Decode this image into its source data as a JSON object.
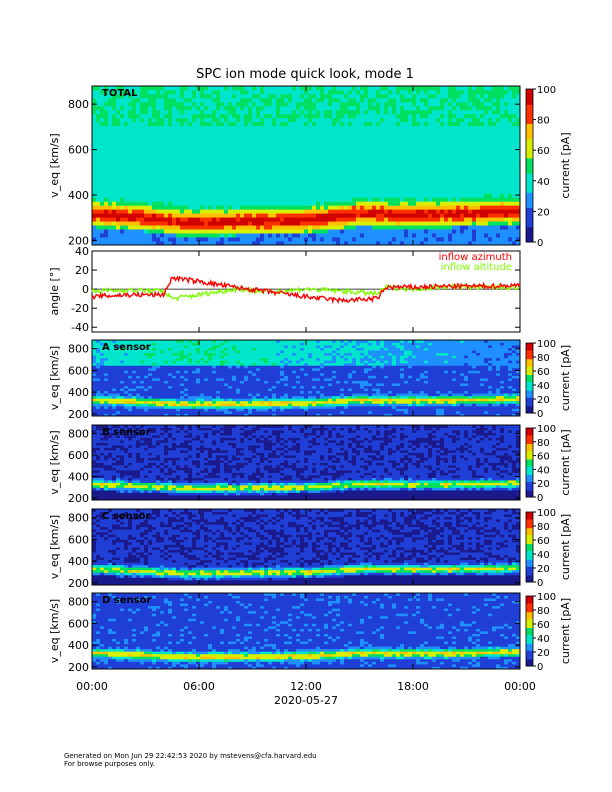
{
  "title": "SPC ion mode quick look, mode 1",
  "footer": {
    "line1": "Generated on Mon Jun 29 22:42:53 2020 by mstevens@cfa.harvard.edu",
    "line2": "For browse purposes only."
  },
  "colors": {
    "azimuth": "#ff0000",
    "altitude": "#7fff00",
    "colormap": [
      "#1a1a8c",
      "#1f3fd6",
      "#1e90ff",
      "#00e6cc",
      "#00e060",
      "#d8f000",
      "#ffc000",
      "#ff3000",
      "#d00000"
    ]
  },
  "chart_data": [
    {
      "type": "heatmap",
      "label": "TOTAL",
      "ylabel": "v_eq [km/s]",
      "ylim": [
        180,
        880
      ],
      "yticks": [
        200,
        400,
        600,
        800
      ],
      "colorbar": {
        "label": "current [pA]",
        "range": [
          0,
          100
        ],
        "ticks": [
          0,
          20,
          40,
          60,
          80,
          100
        ]
      },
      "peak_band_vsw_kms": [
        {
          "time": "00:00",
          "v": 320
        },
        {
          "time": "03:00",
          "v": 300
        },
        {
          "time": "06:00",
          "v": 280
        },
        {
          "time": "09:00",
          "v": 285
        },
        {
          "time": "12:00",
          "v": 290
        },
        {
          "time": "15:00",
          "v": 320
        },
        {
          "time": "18:00",
          "v": 315
        },
        {
          "time": "21:00",
          "v": 320
        },
        {
          "time": "24:00",
          "v": 330
        }
      ]
    },
    {
      "type": "line",
      "ylabel": "angle [°]",
      "ylim": [
        -45,
        40
      ],
      "yticks": [
        -40,
        -20,
        0,
        20,
        40
      ],
      "series": [
        {
          "name": "inflow azimuth",
          "x": [
            0,
            2,
            4,
            4.5,
            6,
            8,
            10,
            12,
            14,
            16,
            16.5,
            18,
            20,
            22,
            24
          ],
          "y": [
            -8,
            -6,
            -6,
            12,
            8,
            2,
            -3,
            -8,
            -12,
            -10,
            2,
            2,
            3,
            3,
            4
          ]
        },
        {
          "name": "inflow altitude",
          "x": [
            0,
            2,
            4,
            4.5,
            6,
            8,
            10,
            12,
            14,
            16,
            16.5,
            18,
            20,
            22,
            24
          ],
          "y": [
            -2,
            -1,
            -2,
            -10,
            -6,
            0,
            -3,
            0,
            -2,
            -5,
            2,
            0,
            3,
            2,
            2
          ]
        }
      ]
    },
    {
      "type": "heatmap",
      "label": "A sensor",
      "ylabel": "v_eq [km/s]",
      "ylim": [
        180,
        880
      ],
      "yticks": [
        200,
        400,
        600,
        800
      ],
      "colorbar": {
        "label": "current [pA]",
        "range": [
          0,
          100
        ],
        "ticks": [
          0,
          20,
          40,
          60,
          80,
          100
        ]
      }
    },
    {
      "type": "heatmap",
      "label": "B sensor",
      "ylabel": "v_eq [km/s]",
      "ylim": [
        180,
        880
      ],
      "yticks": [
        200,
        400,
        600,
        800
      ],
      "colorbar": {
        "label": "current [pA]",
        "range": [
          0,
          100
        ],
        "ticks": [
          0,
          20,
          40,
          60,
          80,
          100
        ]
      }
    },
    {
      "type": "heatmap",
      "label": "C sensor",
      "ylabel": "v_eq [km/s]",
      "ylim": [
        180,
        880
      ],
      "yticks": [
        200,
        400,
        600,
        800
      ],
      "colorbar": {
        "label": "current [pA]",
        "range": [
          0,
          100
        ],
        "ticks": [
          0,
          20,
          40,
          60,
          80,
          100
        ]
      }
    },
    {
      "type": "heatmap",
      "label": "D sensor",
      "ylabel": "v_eq [km/s]",
      "ylim": [
        180,
        880
      ],
      "yticks": [
        200,
        400,
        600,
        800
      ],
      "colorbar": {
        "label": "current [pA]",
        "range": [
          0,
          100
        ],
        "ticks": [
          0,
          20,
          40,
          60,
          80,
          100
        ]
      }
    }
  ],
  "xaxis": {
    "ticks": [
      "00:00",
      "06:00",
      "12:00",
      "18:00",
      "00:00"
    ],
    "date_label": "2020-05-27"
  }
}
